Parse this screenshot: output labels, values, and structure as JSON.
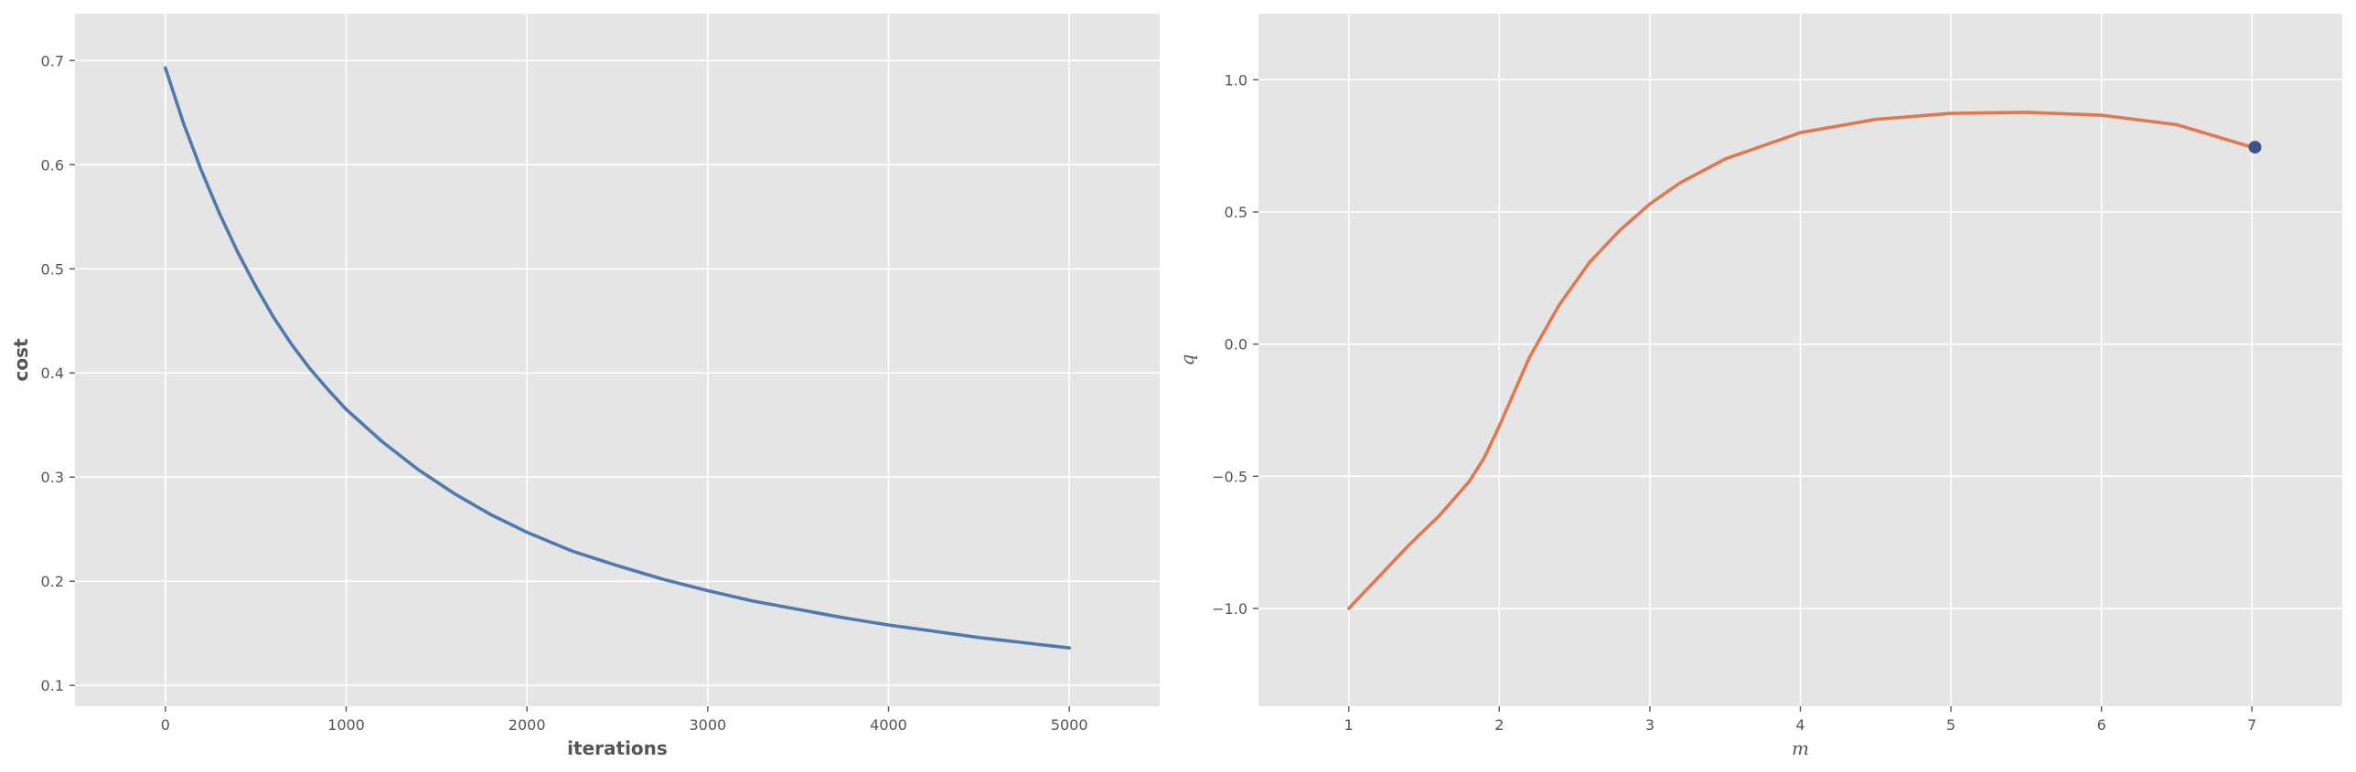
{
  "chart_data": [
    {
      "type": "line",
      "title": "",
      "xlabel": "iterations",
      "ylabel": "cost",
      "xlim": [
        -500,
        5500
      ],
      "ylim": [
        0.08,
        0.745
      ],
      "xticks": [
        0,
        1000,
        2000,
        3000,
        4000,
        5000
      ],
      "yticks": [
        0.1,
        0.2,
        0.3,
        0.4,
        0.5,
        0.6,
        0.7
      ],
      "xtick_labels": [
        "0",
        "1000",
        "2000",
        "3000",
        "4000",
        "5000"
      ],
      "ytick_labels": [
        "0.1",
        "0.2",
        "0.3",
        "0.4",
        "0.5",
        "0.6",
        "0.7"
      ],
      "grid": true,
      "line_color": "#5079ad",
      "series": [
        {
          "x": [
            0,
            100,
            200,
            300,
            400,
            500,
            600,
            700,
            800,
            900,
            1000,
            1200,
            1400,
            1600,
            1800,
            2000,
            2250,
            2500,
            2750,
            3000,
            3250,
            3500,
            3750,
            4000,
            4250,
            4500,
            4750,
            5000
          ],
          "y": [
            0.693,
            0.64,
            0.594,
            0.553,
            0.516,
            0.483,
            0.453,
            0.427,
            0.404,
            0.384,
            0.365,
            0.334,
            0.307,
            0.284,
            0.264,
            0.247,
            0.229,
            0.215,
            0.202,
            0.191,
            0.181,
            0.173,
            0.165,
            0.158,
            0.152,
            0.146,
            0.141,
            0.136
          ]
        }
      ]
    },
    {
      "type": "line",
      "title": "",
      "xlabel": "m",
      "ylabel": "q",
      "xlim": [
        0.4,
        7.6
      ],
      "ylim": [
        -1.37,
        1.25
      ],
      "xticks": [
        1,
        2,
        3,
        4,
        5,
        6,
        7
      ],
      "yticks": [
        -1.0,
        -0.5,
        0.0,
        0.5,
        1.0
      ],
      "xtick_labels": [
        "1",
        "2",
        "3",
        "4",
        "5",
        "6",
        "7"
      ],
      "ytick_labels": [
        "−1.0",
        "−0.5",
        "0.0",
        "0.5",
        "1.0"
      ],
      "grid": true,
      "line_color": "#e07850",
      "marker_color": "#3c5487",
      "series": [
        {
          "x": [
            1.0,
            1.2,
            1.4,
            1.6,
            1.8,
            1.9,
            2.0,
            2.1,
            2.2,
            2.4,
            2.6,
            2.8,
            3.0,
            3.2,
            3.5,
            4.0,
            4.5,
            5.0,
            5.5,
            6.0,
            6.5,
            7.0
          ],
          "y": [
            -1.0,
            -0.88,
            -0.76,
            -0.65,
            -0.52,
            -0.43,
            -0.31,
            -0.18,
            -0.05,
            0.15,
            0.31,
            0.43,
            0.53,
            0.61,
            0.7,
            0.8,
            0.85,
            0.873,
            0.877,
            0.866,
            0.83,
            0.745
          ]
        }
      ],
      "marker": {
        "x": 7.02,
        "y": 0.745
      }
    }
  ]
}
